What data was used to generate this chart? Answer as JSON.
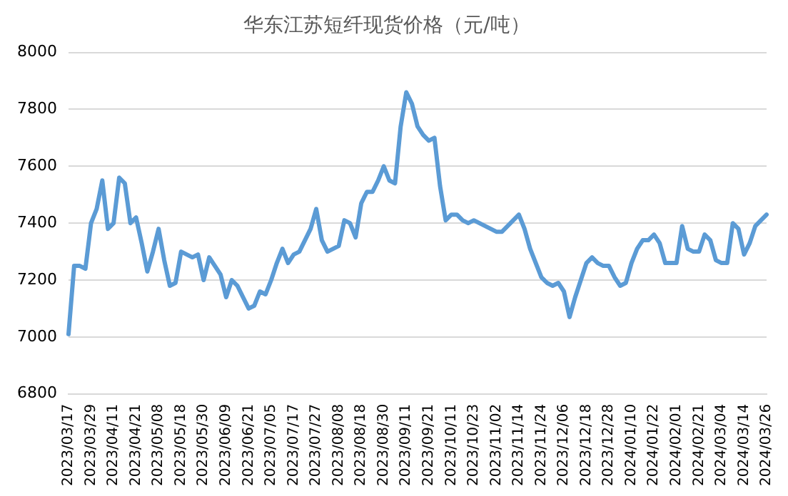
{
  "chart_data": {
    "type": "line",
    "title": "华东江苏短纤现货价格（元/吨）",
    "categories": [
      "2023/03/17",
      null,
      null,
      null,
      "2023/03/29",
      null,
      null,
      null,
      "2023/04/11",
      null,
      null,
      null,
      "2023/04/21",
      null,
      null,
      null,
      "2023/05/08",
      null,
      null,
      null,
      "2023/05/18",
      null,
      null,
      null,
      "2023/05/30",
      null,
      null,
      null,
      "2023/06/09",
      null,
      null,
      null,
      "2023/06/21",
      null,
      null,
      null,
      "2023/07/05",
      null,
      null,
      null,
      "2023/07/17",
      null,
      null,
      null,
      "2023/07/27",
      null,
      null,
      null,
      "2023/08/08",
      null,
      null,
      null,
      "2023/08/18",
      null,
      null,
      null,
      "2023/08/30",
      null,
      null,
      null,
      "2023/09/11",
      null,
      null,
      null,
      "2023/09/21",
      null,
      null,
      null,
      "2023/10/11",
      null,
      null,
      null,
      "2023/10/23",
      null,
      null,
      null,
      "2023/11/02",
      null,
      null,
      null,
      "2023/11/14",
      null,
      null,
      null,
      "2023/11/24",
      null,
      null,
      null,
      "2023/12/06",
      null,
      null,
      null,
      "2023/12/18",
      null,
      null,
      null,
      "2023/12/28",
      null,
      null,
      null,
      "2024/01/10",
      null,
      null,
      null,
      "2024/01/22",
      null,
      null,
      null,
      "2024/02/01",
      null,
      null,
      null,
      "2024/02/21",
      null,
      null,
      null,
      "2024/03/04",
      null,
      null,
      null,
      "2024/03/14",
      null,
      null,
      null,
      "2024/03/26"
    ],
    "series": [
      {
        "color": "#5b9bd5",
        "values": [
          7010,
          7250,
          7250,
          7240,
          7400,
          7450,
          7550,
          7380,
          7400,
          7560,
          7540,
          7400,
          7420,
          7330,
          7230,
          7300,
          7380,
          7270,
          7180,
          7190,
          7300,
          7290,
          7280,
          7290,
          7200,
          7280,
          7250,
          7220,
          7140,
          7200,
          7180,
          7140,
          7100,
          7110,
          7160,
          7150,
          7200,
          7260,
          7310,
          7260,
          7290,
          7300,
          7340,
          7380,
          7450,
          7340,
          7300,
          7310,
          7320,
          7410,
          7400,
          7350,
          7470,
          7510,
          7510,
          7550,
          7600,
          7550,
          7540,
          7740,
          7860,
          7820,
          7740,
          7710,
          7690,
          7700,
          7530,
          7410,
          7430,
          7430,
          7410,
          7400,
          7410,
          7400,
          7390,
          7380,
          7370,
          7370,
          7390,
          7410,
          7430,
          7380,
          7310,
          7260,
          7210,
          7190,
          7180,
          7190,
          7160,
          7070,
          7140,
          7200,
          7260,
          7280,
          7260,
          7250,
          7250,
          7210,
          7180,
          7190,
          7260,
          7310,
          7340,
          7340,
          7360,
          7330,
          7260,
          7260,
          7260,
          7390,
          7310,
          7300,
          7300,
          7360,
          7340,
          7270,
          7260,
          7260,
          7400,
          7380,
          7290,
          7330,
          7390,
          7410,
          7430
        ]
      }
    ],
    "ylim": [
      6800,
      8000
    ],
    "yticks": [
      6800,
      7000,
      7200,
      7400,
      7600,
      7800,
      8000
    ],
    "grid": "y",
    "legend": false,
    "marker": "none",
    "line_style": "solid"
  }
}
